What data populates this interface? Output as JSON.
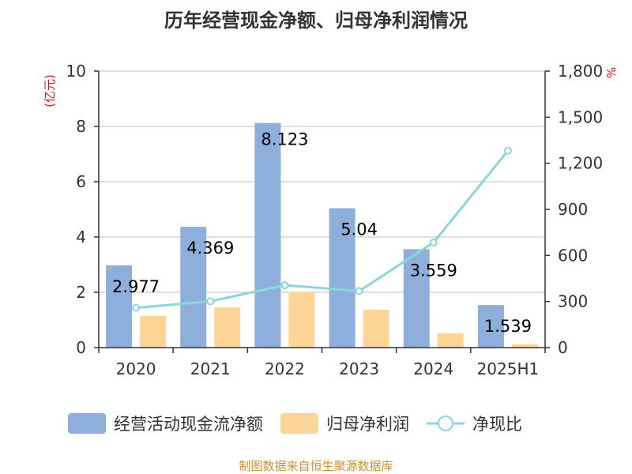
{
  "chart_data": {
    "type": "bar",
    "title": "历年经营现金净额、归母净利润情况",
    "categories": [
      "2020",
      "2021",
      "2022",
      "2023",
      "2024",
      "2025H1"
    ],
    "left_axis": {
      "unit": "(亿元)",
      "ylim": [
        0,
        10
      ],
      "ticks": [
        "0",
        "2",
        "4",
        "6",
        "8",
        "10"
      ]
    },
    "right_axis": {
      "unit": "%",
      "ylim": [
        0,
        1800
      ],
      "ticks": [
        "0",
        "300",
        "600",
        "900",
        "1,200",
        "1,500",
        "1,800"
      ]
    },
    "series": [
      {
        "name": "经营活动现金流净额",
        "type": "bar",
        "axis": "left",
        "color": "#8eafdc",
        "values": [
          2.977,
          4.369,
          8.123,
          5.04,
          3.559,
          1.539
        ],
        "labels": [
          "2.977",
          "4.369",
          "8.123",
          "5.04",
          "3.559",
          "1.539"
        ]
      },
      {
        "name": "归母净利润",
        "type": "bar",
        "axis": "left",
        "color": "#fdd596",
        "values": [
          1.15,
          1.45,
          2.0,
          1.37,
          0.52,
          0.12
        ]
      },
      {
        "name": "净现比",
        "type": "line",
        "axis": "right",
        "color": "#8dd5d8",
        "values": [
          259,
          301,
          406,
          368,
          684,
          1282
        ]
      }
    ],
    "grid": true,
    "legend_position": "bottom"
  },
  "source": "制图数据来自恒生聚源数据库"
}
